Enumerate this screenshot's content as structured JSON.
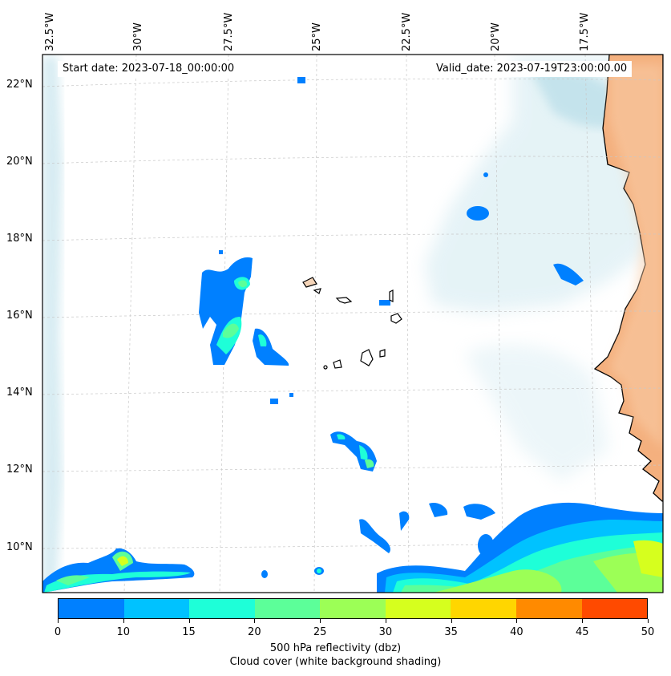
{
  "map": {
    "start_date_label": "Start date: 2023-07-18_00:00:00",
    "valid_date_label": "Valid_date: 2023-07-19T23:00:00.00",
    "lon_labels": [
      "32.5°W",
      "30°W",
      "27.5°W",
      "25°W",
      "22.5°W",
      "20°W",
      "17.5°W"
    ],
    "lat_labels": [
      "22°N",
      "20°N",
      "18°N",
      "16°N",
      "14°N",
      "12°N",
      "10°N"
    ],
    "ocean_color": "#ffffff",
    "land_color": "#f4b07e",
    "cloud_color": "#b7dde8"
  },
  "colorbar": {
    "ticks": [
      "0",
      "10",
      "15",
      "20",
      "25",
      "30",
      "35",
      "40",
      "45",
      "50"
    ],
    "colors": [
      "#0080ff",
      "#00c2ff",
      "#1effd8",
      "#5cff99",
      "#9cff56",
      "#d6ff1e",
      "#ffd600",
      "#ff8a00",
      "#ff4a00"
    ],
    "label": "500 hPa reflectivity (dbz)",
    "sublabel": "Cloud cover (white background shading)"
  }
}
